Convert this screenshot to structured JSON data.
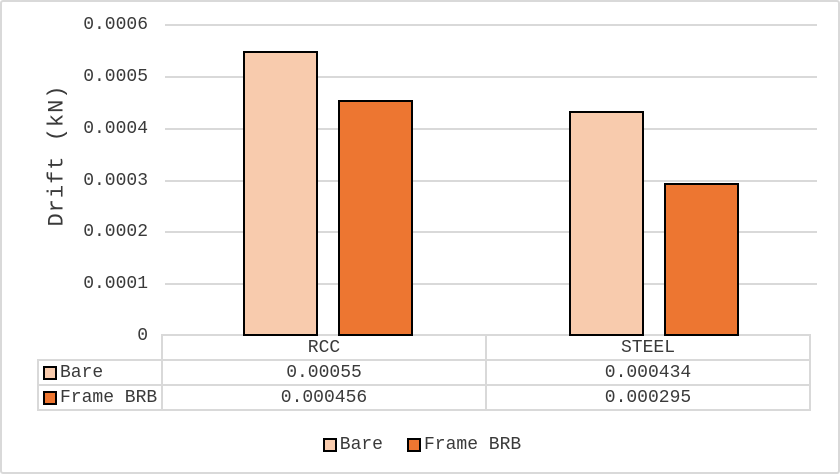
{
  "frame": {
    "background": "#FFFFFF",
    "border_color": "#D9D9D9",
    "text_color": "#3A3A3A"
  },
  "chart_data": {
    "type": "bar",
    "title": "",
    "xlabel": "",
    "ylabel": "Drift (kN)",
    "categories": [
      "RCC",
      "STEEL"
    ],
    "series": [
      {
        "name": "Bare",
        "color": "#F8CBAD",
        "values": [
          0.00055,
          0.000434
        ]
      },
      {
        "name": "Frame BRB",
        "color": "#ED7631",
        "values": [
          0.000456,
          0.000295
        ]
      }
    ],
    "ylim": [
      0,
      0.0006
    ],
    "ytick_step": 0.0001,
    "ytick_labels": [
      "0",
      "0.0001",
      "0.0002",
      "0.0003",
      "0.0004",
      "0.0005",
      "0.0006"
    ],
    "grid": true,
    "gridline_color": "#D9D9D9",
    "bar_border_color": "#000000",
    "legend_position": "bottom",
    "data_table_shown": true
  },
  "data_table": {
    "columns": [
      "RCC",
      "STEEL"
    ],
    "rows": [
      {
        "label": "Bare",
        "color": "#F8CBAD",
        "values": [
          "0.00055",
          "0.000434"
        ]
      },
      {
        "label": "Frame BRB",
        "color": "#ED7631",
        "values": [
          "0.000456",
          "0.000295"
        ]
      }
    ]
  },
  "legend": {
    "items": [
      {
        "label": "Bare",
        "color": "#F8CBAD"
      },
      {
        "label": "Frame BRB",
        "color": "#ED7631"
      }
    ]
  }
}
